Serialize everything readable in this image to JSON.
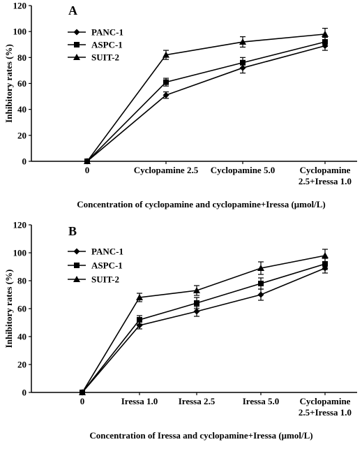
{
  "chart_data": [
    {
      "type": "line",
      "panel_label": "A",
      "title": "",
      "xlabel": "Concentration of cyclopamine and cyclopamine+Iressa (μmol/L)",
      "ylabel": "Inhibitory rates (%)",
      "categories": [
        "0",
        "Cyclopamine 2.5",
        "Cyclopamine 5.0",
        "Cyclopamine 2.5+Iressa 1.0"
      ],
      "category_lines": [
        [
          "0"
        ],
        [
          "Cyclopamine 2.5"
        ],
        [
          "Cyclopamine 5.0"
        ],
        [
          "Cyclopamine",
          "2.5+Iressa 1.0"
        ]
      ],
      "ylim": [
        0,
        120
      ],
      "yticks": [
        "0",
        "20",
        "40",
        "60",
        "80",
        "100",
        "120"
      ],
      "grid": false,
      "legend_position": "top-left",
      "series": [
        {
          "name": "PANC-1",
          "marker": "diamond",
          "values": [
            0,
            51,
            72,
            89
          ],
          "errors": [
            0,
            2.5,
            4,
            3.5
          ]
        },
        {
          "name": "ASPC-1",
          "marker": "square",
          "values": [
            0,
            61,
            76,
            92
          ],
          "errors": [
            0,
            3,
            4,
            3.5
          ]
        },
        {
          "name": "SUIT-2",
          "marker": "triangle",
          "values": [
            0,
            82,
            92,
            98
          ],
          "errors": [
            0,
            3.5,
            4,
            4.5
          ]
        }
      ]
    },
    {
      "type": "line",
      "panel_label": "B",
      "title": "",
      "xlabel": "Concentration of Iressa and cyclopamine+Iressa (μmol/L)",
      "ylabel": "Inhibitory rates (%)",
      "categories": [
        "0",
        "Iressa 1.0",
        "Iressa 2.5",
        "Iressa 5.0",
        "Cyclopamine 2.5+Iressa 1.0"
      ],
      "category_lines": [
        [
          "0"
        ],
        [
          "Iressa 1.0"
        ],
        [
          "Iressa 2.5"
        ],
        [
          "Iressa 5.0"
        ],
        [
          "Cyclopamine",
          "2.5+Iressa 1.0"
        ]
      ],
      "ylim": [
        0,
        120
      ],
      "yticks": [
        "0",
        "20",
        "40",
        "60",
        "80",
        "100",
        "120"
      ],
      "grid": false,
      "legend_position": "top-left",
      "series": [
        {
          "name": "PANC-1",
          "marker": "diamond",
          "values": [
            0,
            48,
            58,
            70,
            89
          ],
          "errors": [
            0,
            2.5,
            3.5,
            4,
            3.5
          ]
        },
        {
          "name": "ASPC-1",
          "marker": "square",
          "values": [
            0,
            52,
            64,
            78,
            92
          ],
          "errors": [
            0,
            3,
            4,
            4,
            4
          ]
        },
        {
          "name": "SUIT-2",
          "marker": "triangle",
          "values": [
            0,
            68,
            73,
            89,
            98
          ],
          "errors": [
            0,
            3,
            3.5,
            4.5,
            4.5
          ]
        }
      ]
    }
  ]
}
